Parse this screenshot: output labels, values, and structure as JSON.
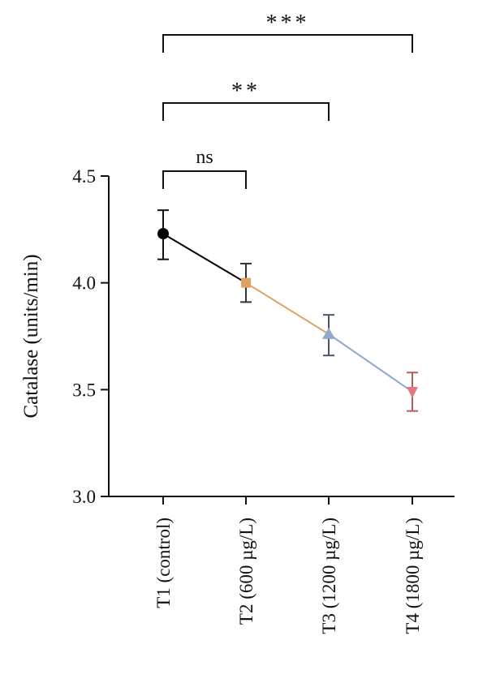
{
  "chart_data": {
    "type": "line",
    "title": "",
    "xlabel": "",
    "ylabel": "Catalase (units/min)",
    "ylim": [
      3.0,
      4.5
    ],
    "yticks": [
      3.0,
      3.5,
      4.0,
      4.5
    ],
    "ytick_labels": [
      "3.0",
      "3.5",
      "4.0",
      "4.5"
    ],
    "categories": [
      "T1 (control)",
      "T2 (600 µg/L)",
      "T3 (1200 µg/L)",
      "T4 (1800 µg/L)"
    ],
    "values": [
      4.23,
      4.0,
      3.76,
      3.49
    ],
    "error_low": [
      4.11,
      3.91,
      3.66,
      3.4
    ],
    "error_high": [
      4.34,
      4.09,
      3.85,
      3.58
    ],
    "marker_colors": [
      "#000000",
      "#e0a060",
      "#8fa8cc",
      "#e07a7a"
    ],
    "marker_shapes": [
      "circle",
      "square",
      "triangle-up",
      "triangle-down"
    ],
    "errorbar_colors": [
      "#111111",
      "#333333",
      "#4a5670",
      "#b85a5a"
    ],
    "segment_colors": [
      "#000000",
      "#e0a060",
      "#8fa8cc"
    ],
    "grid": false,
    "significance": [
      {
        "from": 0,
        "to": 1,
        "label": "ns"
      },
      {
        "from": 0,
        "to": 2,
        "label": "**"
      },
      {
        "from": 0,
        "to": 3,
        "label": "***"
      }
    ]
  }
}
